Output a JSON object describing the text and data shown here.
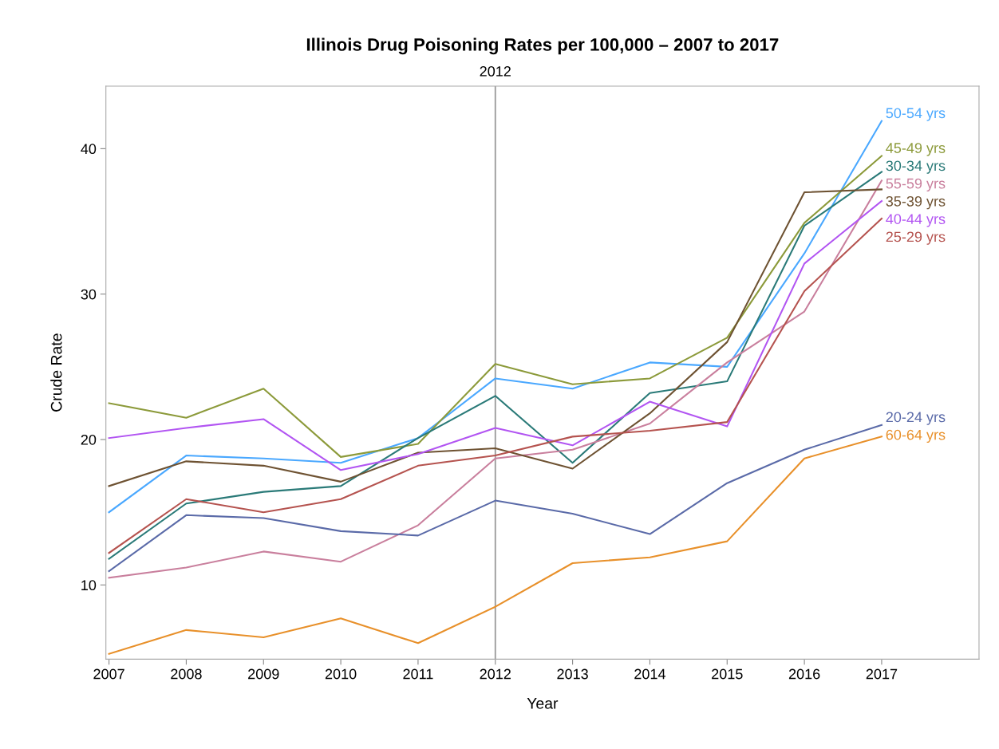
{
  "chart_data": {
    "type": "line",
    "title": "Illinois Drug Poisoning Rates per 100,000 – 2007 to 2017",
    "xlabel": "Year",
    "ylabel": "Crude Rate",
    "x": [
      2007,
      2008,
      2009,
      2010,
      2011,
      2012,
      2013,
      2014,
      2015,
      2016,
      2017
    ],
    "xlim": [
      2006.96,
      2018.26
    ],
    "xticks": [
      2007,
      2008,
      2009,
      2010,
      2011,
      2012,
      2013,
      2014,
      2015,
      2016,
      2017
    ],
    "ylim": [
      4.9,
      44.3
    ],
    "yticks": [
      10,
      20,
      30,
      40
    ],
    "grid": false,
    "legend": false,
    "line_style": "solid",
    "marker": "none",
    "ref_lines": [
      {
        "axis": "x",
        "value": 2012,
        "label": "2012",
        "color": "#999999"
      }
    ],
    "series": [
      {
        "name": "50-54 yrs",
        "color": "#4aa8ff",
        "values": [
          15.0,
          18.9,
          18.7,
          18.4,
          20.1,
          24.2,
          23.5,
          25.3,
          25.0,
          32.8,
          41.9
        ]
      },
      {
        "name": "45-49 yrs",
        "color": "#8c9a3a",
        "values": [
          22.5,
          21.5,
          23.5,
          18.8,
          19.7,
          25.2,
          23.8,
          24.2,
          27.0,
          34.9,
          39.5
        ]
      },
      {
        "name": "30-34 yrs",
        "color": "#2a7a78",
        "values": [
          11.8,
          15.6,
          16.4,
          16.8,
          20.1,
          23.0,
          18.4,
          23.2,
          24.0,
          34.7,
          38.4
        ]
      },
      {
        "name": "55-59 yrs",
        "color": "#c97f9d",
        "values": [
          10.5,
          11.2,
          12.3,
          11.6,
          14.1,
          18.7,
          19.3,
          21.1,
          25.3,
          28.8,
          37.8
        ]
      },
      {
        "name": "35-39 yrs",
        "color": "#6e5232",
        "values": [
          16.8,
          18.5,
          18.2,
          17.1,
          19.1,
          19.4,
          18.0,
          21.8,
          26.7,
          37.0,
          37.2
        ]
      },
      {
        "name": "40-44 yrs",
        "color": "#b255f2",
        "values": [
          20.1,
          20.8,
          21.4,
          17.9,
          19.0,
          20.8,
          19.6,
          22.6,
          20.9,
          32.1,
          36.4
        ]
      },
      {
        "name": "25-29 yrs",
        "color": "#b5534f",
        "values": [
          12.2,
          15.9,
          15.0,
          15.9,
          18.2,
          18.9,
          20.2,
          20.6,
          21.2,
          30.2,
          35.2
        ]
      },
      {
        "name": "20-24 yrs",
        "color": "#5a6aa8",
        "values": [
          10.95,
          14.8,
          14.6,
          13.7,
          13.4,
          15.8,
          14.9,
          13.5,
          17.0,
          19.3,
          21.0
        ]
      },
      {
        "name": "60-64 yrs",
        "color": "#e8902a",
        "values": [
          5.26,
          6.9,
          6.4,
          7.7,
          6.0,
          8.5,
          11.5,
          11.9,
          13.0,
          18.7,
          20.2
        ]
      }
    ]
  }
}
